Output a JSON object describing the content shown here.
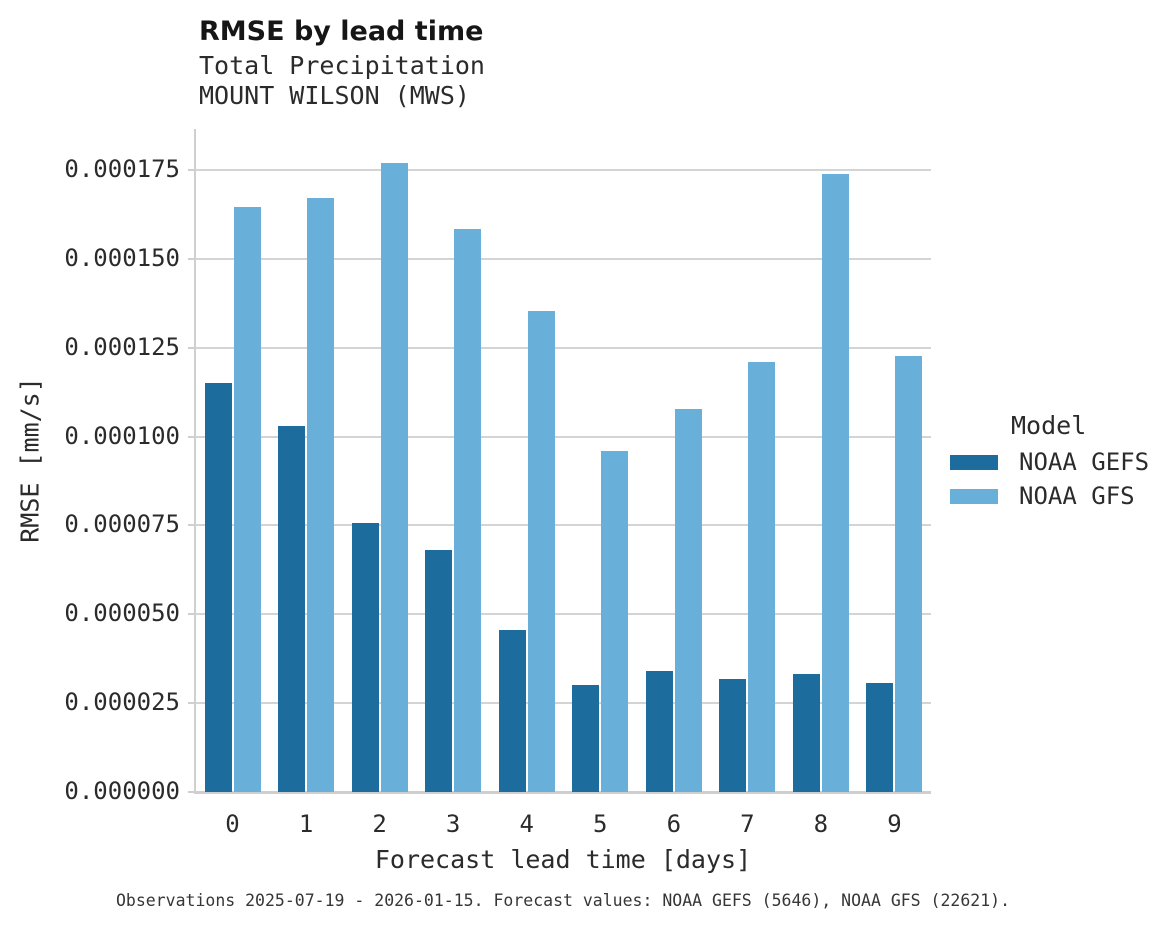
{
  "header": {
    "title": "RMSE by lead time",
    "subtitle1": "Total Precipitation",
    "subtitle2": "MOUNT WILSON (MWS)"
  },
  "chart_data": {
    "type": "bar",
    "title": "RMSE by lead time",
    "subtitle": [
      "Total Precipitation",
      "MOUNT WILSON (MWS)"
    ],
    "xlabel": "Forecast lead time [days]",
    "ylabel": "RMSE [mm/s]",
    "categories": [
      "0",
      "1",
      "2",
      "3",
      "4",
      "5",
      "6",
      "7",
      "8",
      "9"
    ],
    "series": [
      {
        "name": "NOAA GEFS",
        "color": "#1c6d9d",
        "values": [
          0.000115,
          0.000103,
          7.57e-05,
          6.81e-05,
          4.57e-05,
          3.02e-05,
          3.41e-05,
          3.19e-05,
          3.33e-05,
          3.08e-05
        ]
      },
      {
        "name": "NOAA GFS",
        "color": "#68b0d9",
        "values": [
          0.0001646,
          0.000167,
          0.0001771,
          0.0001585,
          0.0001353,
          9.6e-05,
          0.0001078,
          0.000121,
          0.0001738,
          0.0001227
        ]
      }
    ],
    "ylim": [
      0,
      0.00018
    ],
    "yticks": [
      0,
      2.5e-05,
      5e-05,
      7.5e-05,
      0.0001,
      0.000125,
      0.00015,
      0.000175
    ],
    "ytick_labels": [
      "0.000000",
      "0.000025",
      "0.000050",
      "0.000075",
      "0.000100",
      "0.000125",
      "0.000150",
      "0.000175"
    ],
    "legend_title": "Model",
    "legend_position": "right",
    "grid": true
  },
  "footer": {
    "caption": "Observations 2025-07-19 - 2026-01-15. Forecast values: NOAA GEFS (5646), NOAA GFS (22621)."
  }
}
